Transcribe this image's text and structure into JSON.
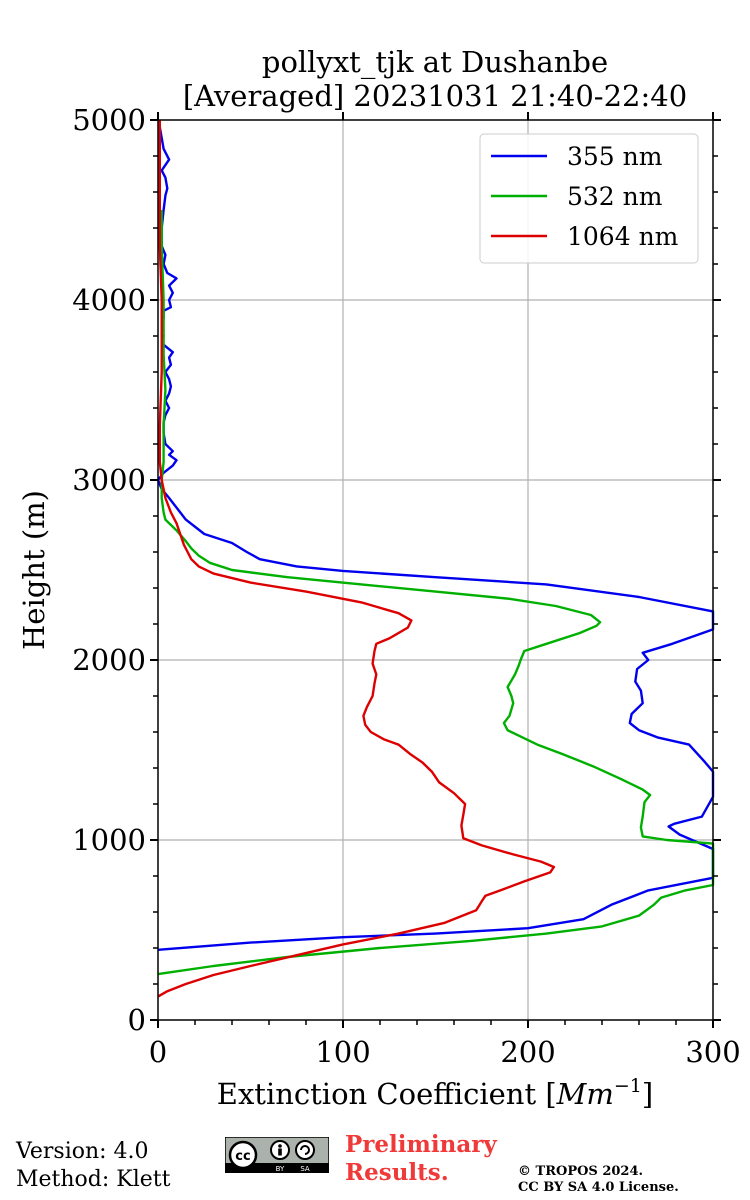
{
  "chart_data": {
    "type": "line",
    "title_line1": "pollyxt_tjk at Dushanbe",
    "title_line2": "[Averaged] 20231031 21:40-22:40",
    "xlabel": "Extinction Coefficient [",
    "xlabel_unit": "Mm",
    "xlabel_exp": "−1",
    "xlabel_close": "]",
    "ylabel": "Height (m)",
    "xlim": [
      0,
      300
    ],
    "ylim": [
      0,
      5000
    ],
    "xticks": [
      0,
      100,
      200,
      300
    ],
    "yticks": [
      0,
      1000,
      2000,
      3000,
      4000,
      5000
    ],
    "grid": true,
    "legend_position": "top-right",
    "series": [
      {
        "name": "355 nm",
        "color": "#0000ee",
        "points": [
          [
            0,
            390
          ],
          [
            50,
            430
          ],
          [
            100,
            460
          ],
          [
            150,
            480
          ],
          [
            200,
            510
          ],
          [
            230,
            560
          ],
          [
            245,
            640
          ],
          [
            265,
            720
          ],
          [
            300,
            790
          ],
          [
            300,
            950
          ],
          [
            282,
            1030
          ],
          [
            276,
            1075
          ],
          [
            279,
            1090
          ],
          [
            294,
            1130
          ],
          [
            300,
            1240
          ],
          [
            300,
            1380
          ],
          [
            295,
            1440
          ],
          [
            287,
            1530
          ],
          [
            270,
            1570
          ],
          [
            260,
            1610
          ],
          [
            255,
            1650
          ],
          [
            256,
            1700
          ],
          [
            262,
            1760
          ],
          [
            261,
            1830
          ],
          [
            258,
            1880
          ],
          [
            259,
            1950
          ],
          [
            265,
            2000
          ],
          [
            262,
            2040
          ],
          [
            278,
            2090
          ],
          [
            300,
            2170
          ],
          [
            300,
            2270
          ],
          [
            260,
            2350
          ],
          [
            210,
            2420
          ],
          [
            150,
            2460
          ],
          [
            100,
            2495
          ],
          [
            75,
            2520
          ],
          [
            55,
            2560
          ],
          [
            48,
            2600
          ],
          [
            40,
            2650
          ],
          [
            25,
            2700
          ],
          [
            15,
            2780
          ],
          [
            6,
            2900
          ],
          [
            2,
            2950
          ],
          [
            0,
            3000
          ],
          [
            3,
            3040
          ],
          [
            8,
            3080
          ],
          [
            10,
            3110
          ],
          [
            6,
            3140
          ],
          [
            8,
            3160
          ],
          [
            4,
            3200
          ],
          [
            3,
            3260
          ],
          [
            3,
            3320
          ],
          [
            4,
            3360
          ],
          [
            6,
            3400
          ],
          [
            4,
            3440
          ],
          [
            6,
            3480
          ],
          [
            7,
            3520
          ],
          [
            6,
            3560
          ],
          [
            4,
            3600
          ],
          [
            7,
            3640
          ],
          [
            6,
            3680
          ],
          [
            8,
            3710
          ],
          [
            2,
            3760
          ],
          [
            3,
            3800
          ],
          [
            2,
            3850
          ],
          [
            3,
            3900
          ],
          [
            3,
            3940
          ],
          [
            7,
            3960
          ],
          [
            6,
            4000
          ],
          [
            8,
            4040
          ],
          [
            6,
            4080
          ],
          [
            10,
            4120
          ],
          [
            5,
            4150
          ],
          [
            3,
            4200
          ],
          [
            4,
            4250
          ],
          [
            2,
            4300
          ],
          [
            2,
            4400
          ],
          [
            3,
            4500
          ],
          [
            4,
            4580
          ],
          [
            5,
            4620
          ],
          [
            4,
            4680
          ],
          [
            2,
            4720
          ],
          [
            6,
            4780
          ],
          [
            3,
            4840
          ],
          [
            2,
            4900
          ],
          [
            1,
            4960
          ]
        ]
      },
      {
        "name": "532 nm",
        "color": "#00b000",
        "points": [
          [
            0,
            255
          ],
          [
            30,
            300
          ],
          [
            70,
            350
          ],
          [
            120,
            400
          ],
          [
            170,
            440
          ],
          [
            210,
            480
          ],
          [
            240,
            520
          ],
          [
            260,
            580
          ],
          [
            268,
            640
          ],
          [
            272,
            680
          ],
          [
            285,
            720
          ],
          [
            300,
            750
          ],
          [
            300,
            980
          ],
          [
            275,
            1000
          ],
          [
            262,
            1020
          ],
          [
            261,
            1070
          ],
          [
            262,
            1130
          ],
          [
            263,
            1210
          ],
          [
            266,
            1250
          ],
          [
            262,
            1280
          ],
          [
            250,
            1340
          ],
          [
            235,
            1410
          ],
          [
            218,
            1480
          ],
          [
            205,
            1530
          ],
          [
            197,
            1570
          ],
          [
            189,
            1610
          ],
          [
            187,
            1650
          ],
          [
            190,
            1690
          ],
          [
            192,
            1760
          ],
          [
            191,
            1800
          ],
          [
            189,
            1850
          ],
          [
            193,
            1920
          ],
          [
            195,
            1970
          ],
          [
            196,
            2000
          ],
          [
            198,
            2050
          ],
          [
            210,
            2090
          ],
          [
            228,
            2150
          ],
          [
            237,
            2190
          ],
          [
            239,
            2210
          ],
          [
            234,
            2250
          ],
          [
            215,
            2300
          ],
          [
            190,
            2340
          ],
          [
            150,
            2380
          ],
          [
            110,
            2420
          ],
          [
            70,
            2460
          ],
          [
            40,
            2500
          ],
          [
            28,
            2540
          ],
          [
            22,
            2580
          ],
          [
            18,
            2620
          ],
          [
            15,
            2660
          ],
          [
            10,
            2720
          ],
          [
            4,
            2780
          ],
          [
            3,
            2820
          ],
          [
            2,
            2900
          ],
          [
            2,
            3000
          ],
          [
            3,
            3100
          ],
          [
            3,
            3300
          ],
          [
            4,
            3500
          ],
          [
            3,
            3700
          ],
          [
            3,
            4000
          ],
          [
            2,
            4300
          ],
          [
            2,
            4500
          ]
        ]
      },
      {
        "name": "1064 nm",
        "color": "#dd0000",
        "points": [
          [
            0,
            130
          ],
          [
            5,
            160
          ],
          [
            15,
            200
          ],
          [
            30,
            250
          ],
          [
            50,
            300
          ],
          [
            75,
            360
          ],
          [
            100,
            420
          ],
          [
            130,
            480
          ],
          [
            155,
            540
          ],
          [
            172,
            610
          ],
          [
            175,
            660
          ],
          [
            177,
            690
          ],
          [
            185,
            720
          ],
          [
            198,
            770
          ],
          [
            212,
            820
          ],
          [
            214,
            850
          ],
          [
            207,
            880
          ],
          [
            192,
            920
          ],
          [
            175,
            970
          ],
          [
            165,
            1010
          ],
          [
            164,
            1080
          ],
          [
            165,
            1140
          ],
          [
            166,
            1200
          ],
          [
            160,
            1260
          ],
          [
            152,
            1320
          ],
          [
            148,
            1380
          ],
          [
            143,
            1430
          ],
          [
            136,
            1480
          ],
          [
            130,
            1530
          ],
          [
            122,
            1560
          ],
          [
            115,
            1600
          ],
          [
            112,
            1640
          ],
          [
            111,
            1690
          ],
          [
            113,
            1740
          ],
          [
            116,
            1800
          ],
          [
            117,
            1870
          ],
          [
            118,
            1920
          ],
          [
            116,
            1980
          ],
          [
            117,
            2050
          ],
          [
            118,
            2090
          ],
          [
            125,
            2120
          ],
          [
            135,
            2180
          ],
          [
            137,
            2220
          ],
          [
            130,
            2260
          ],
          [
            110,
            2320
          ],
          [
            80,
            2380
          ],
          [
            50,
            2430
          ],
          [
            30,
            2480
          ],
          [
            22,
            2520
          ],
          [
            18,
            2560
          ],
          [
            16,
            2600
          ],
          [
            14,
            2640
          ],
          [
            12,
            2700
          ],
          [
            10,
            2760
          ],
          [
            7,
            2820
          ],
          [
            4,
            2900
          ],
          [
            2,
            3000
          ],
          [
            1,
            3100
          ],
          [
            1,
            3300
          ],
          [
            2,
            3600
          ],
          [
            2,
            4000
          ],
          [
            1,
            4300
          ],
          [
            1,
            4600
          ],
          [
            1,
            5000
          ]
        ]
      }
    ]
  },
  "footer": {
    "version": "Version: 4.0",
    "method": "Method: Klett",
    "badge_cc": "cc",
    "badge_by": "BY",
    "badge_sa": "SA",
    "preliminary_line1": "Preliminary",
    "preliminary_line2": "Results.",
    "copyright_line1": "© TROPOS 2024.",
    "copyright_line2": "CC BY SA 4.0 License."
  }
}
